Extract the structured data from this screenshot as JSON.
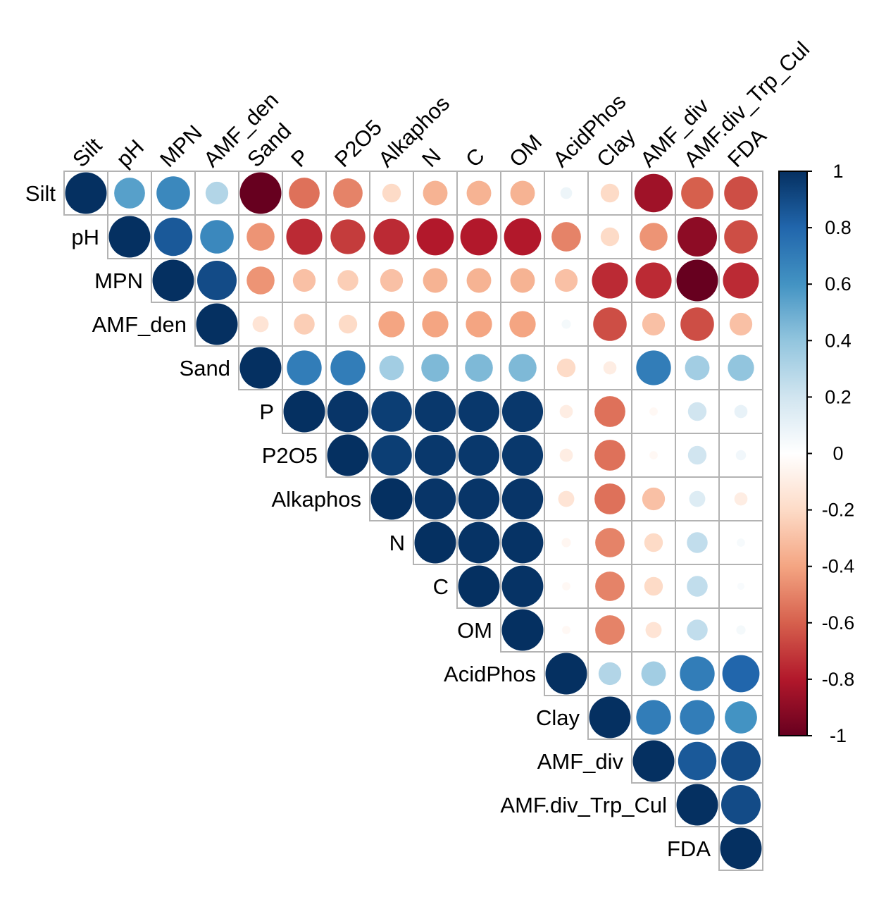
{
  "chart_data": {
    "type": "heatmap",
    "style": "corrplot-circle-upper-triangle",
    "variables": [
      "Silt",
      "pH",
      "MPN",
      "AMF_den",
      "Sand",
      "P",
      "P2O5",
      "Alkaphos",
      "N",
      "C",
      "OM",
      "AcidPhos",
      "Clay",
      "AMF_div",
      "AMF.div_Trp_Cul",
      "FDA"
    ],
    "matrix_upper": [
      [
        1,
        0.55,
        0.65,
        0.3,
        -1.0,
        -0.55,
        -0.5,
        -0.2,
        -0.35,
        -0.35,
        -0.35,
        0.08,
        -0.2,
        -0.85,
        -0.6,
        -0.65
      ],
      [
        1,
        0.85,
        0.65,
        -0.45,
        -0.75,
        -0.7,
        -0.75,
        -0.8,
        -0.8,
        -0.8,
        -0.5,
        -0.2,
        -0.45,
        -0.9,
        -0.65
      ],
      [
        1,
        0.9,
        -0.45,
        -0.3,
        -0.25,
        -0.3,
        -0.35,
        -0.35,
        -0.35,
        -0.3,
        -0.75,
        -0.75,
        -1.0,
        -0.75
      ],
      [
        1,
        -0.15,
        -0.25,
        -0.2,
        -0.4,
        -0.4,
        -0.4,
        -0.4,
        0.05,
        -0.65,
        -0.3,
        -0.65,
        -0.3
      ],
      [
        1,
        0.7,
        0.7,
        0.35,
        0.45,
        0.45,
        0.45,
        -0.2,
        -0.1,
        0.7,
        0.35,
        0.4
      ],
      [
        1,
        0.98,
        0.95,
        0.97,
        0.97,
        0.97,
        -0.1,
        -0.55,
        -0.04,
        0.2,
        0.1
      ],
      [
        1,
        0.95,
        0.97,
        0.97,
        0.97,
        -0.1,
        -0.55,
        -0.04,
        0.2,
        0.06
      ],
      [
        1,
        0.98,
        0.98,
        0.98,
        -0.15,
        -0.55,
        -0.3,
        0.15,
        -0.1
      ],
      [
        1,
        0.99,
        0.99,
        -0.05,
        -0.5,
        -0.2,
        0.25,
        0.04
      ],
      [
        1,
        0.99,
        -0.04,
        -0.5,
        -0.2,
        0.25,
        0.03
      ],
      [
        1,
        -0.04,
        -0.5,
        -0.15,
        0.25,
        0.05
      ],
      [
        1,
        0.3,
        0.35,
        0.7,
        0.8
      ],
      [
        1,
        0.7,
        0.7,
        0.6
      ],
      [
        1,
        0.85,
        0.9
      ],
      [
        1,
        0.9
      ],
      [
        1
      ]
    ],
    "colorbar": {
      "range": [
        -1,
        1
      ],
      "ticks": [
        "1",
        "0.8",
        "0.6",
        "0.4",
        "0.2",
        "0",
        "-0.2",
        "-0.4",
        "-0.6",
        "-0.8",
        "-1"
      ],
      "colors": [
        "#67001F",
        "#B2182B",
        "#D6604D",
        "#F4A582",
        "#FDDBC7",
        "#FFFFFF",
        "#D1E5F0",
        "#92C5DE",
        "#4393C3",
        "#2166AC",
        "#053061"
      ]
    },
    "legend_position": "right",
    "grid": true
  }
}
